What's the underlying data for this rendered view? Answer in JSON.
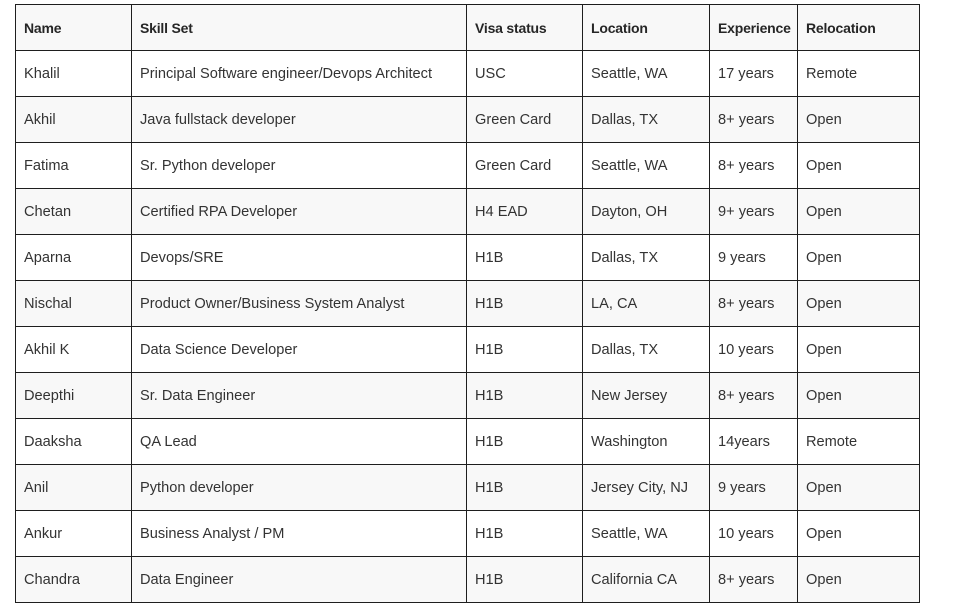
{
  "table": {
    "columns": [
      {
        "key": "name",
        "label": "Name"
      },
      {
        "key": "skill",
        "label": "Skill Set"
      },
      {
        "key": "visa",
        "label": "Visa status"
      },
      {
        "key": "location",
        "label": "Location"
      },
      {
        "key": "experience",
        "label": "Experience"
      },
      {
        "key": "relocation",
        "label": "Relocation"
      }
    ],
    "rows": [
      [
        "Khalil",
        "Principal Software engineer/Devops Architect",
        "USC",
        "Seattle, WA",
        "17 years",
        "Remote"
      ],
      [
        "Akhil",
        "Java fullstack developer",
        "Green Card",
        "Dallas, TX",
        "8+ years",
        "Open"
      ],
      [
        "Fatima",
        "Sr. Python developer",
        "Green Card",
        "Seattle, WA",
        "8+ years",
        "Open"
      ],
      [
        "Chetan",
        "Certified RPA Developer",
        "H4 EAD",
        "Dayton, OH",
        "9+ years",
        "Open"
      ],
      [
        "Aparna",
        "Devops/SRE",
        "H1B",
        "Dallas, TX",
        "9 years",
        "Open"
      ],
      [
        "Nischal",
        "Product Owner/Business System Analyst",
        "H1B",
        "LA, CA",
        "8+ years",
        "Open"
      ],
      [
        "Akhil K",
        "Data Science Developer",
        "H1B",
        "Dallas, TX",
        "10 years",
        "Open"
      ],
      [
        "Deepthi",
        "Sr. Data Engineer",
        "H1B",
        "New Jersey",
        "8+ years",
        "Open"
      ],
      [
        "Daaksha",
        "QA Lead",
        "H1B",
        "Washington",
        "14years",
        "Remote"
      ],
      [
        "Anil",
        "Python developer",
        "H1B",
        "Jersey City, NJ",
        "9 years",
        "Open"
      ],
      [
        "Ankur",
        "Business Analyst / PM",
        "H1B",
        "Seattle, WA",
        "10 years",
        "Open"
      ],
      [
        "Chandra",
        "Data Engineer",
        "H1B",
        "California CA",
        "8+ years",
        "Open"
      ]
    ]
  },
  "colors": {
    "background": "#ffffff",
    "header_bg": "#f8f8f8",
    "stripe_bg": "#f8f8f8",
    "border": "#1e1e1e",
    "text": "#333333",
    "header_text": "#262626"
  }
}
